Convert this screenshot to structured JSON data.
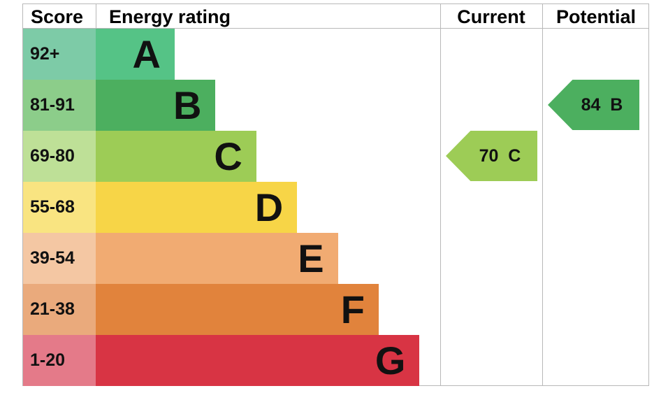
{
  "chart_data": {
    "type": "table",
    "headers": {
      "score": "Score",
      "rating": "Energy rating",
      "current": "Current",
      "potential": "Potential"
    },
    "bands": [
      {
        "letter": "A",
        "range": "92+",
        "min": 92,
        "max": 100,
        "color": "#55c386",
        "score_color": "#7dcba7"
      },
      {
        "letter": "B",
        "range": "81-91",
        "min": 81,
        "max": 91,
        "color": "#4caf5f",
        "score_color": "#8ccd8a"
      },
      {
        "letter": "C",
        "range": "69-80",
        "min": 69,
        "max": 80,
        "color": "#9dcc56",
        "score_color": "#bee097"
      },
      {
        "letter": "D",
        "range": "55-68",
        "min": 55,
        "max": 68,
        "color": "#f7d547",
        "score_color": "#f9e481"
      },
      {
        "letter": "E",
        "range": "39-54",
        "min": 39,
        "max": 54,
        "color": "#f1ab72",
        "score_color": "#f4c7a3"
      },
      {
        "letter": "F",
        "range": "21-38",
        "min": 21,
        "max": 38,
        "color": "#e1833c",
        "score_color": "#eaaa7c"
      },
      {
        "letter": "G",
        "range": "1-20",
        "min": 1,
        "max": 20,
        "color": "#d83444",
        "score_color": "#e47a89"
      }
    ],
    "current": {
      "value": 70,
      "band": "C",
      "label": "70  C",
      "color": "#9dcc56"
    },
    "potential": {
      "value": 84,
      "band": "B",
      "label": "84  B",
      "color": "#4caf5f"
    }
  }
}
